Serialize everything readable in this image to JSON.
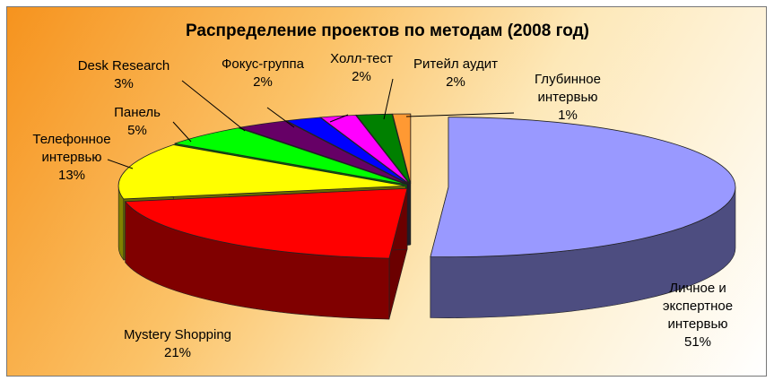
{
  "chart_data": {
    "type": "pie",
    "style": "3d-exploded",
    "title": "Распределение проектов по методам (2008 год)",
    "slices": [
      {
        "label": "Личное и экспертное интервью",
        "label_lines": [
          "Личное и",
          "экспертное",
          "интервью"
        ],
        "value": 51,
        "percent_label": "51%",
        "color": "#9999ff"
      },
      {
        "label": "Mystery Shopping",
        "label_lines": [
          "Mystery Shopping"
        ],
        "value": 21,
        "percent_label": "21%",
        "color": "#ff0000"
      },
      {
        "label": "Телефонное интервью",
        "label_lines": [
          "Телефонное",
          "интервью"
        ],
        "value": 13,
        "percent_label": "13%",
        "color": "#ffff00"
      },
      {
        "label": "Панель",
        "label_lines": [
          "Панель"
        ],
        "value": 5,
        "percent_label": "5%",
        "color": "#00ff00"
      },
      {
        "label": "Desk Research",
        "label_lines": [
          "Desk Research"
        ],
        "value": 3,
        "percent_label": "3%",
        "color": "#660066"
      },
      {
        "label": "Фокус-группа",
        "label_lines": [
          "Фокус-группа"
        ],
        "value": 2,
        "percent_label": "2%",
        "color": "#0000ff"
      },
      {
        "label": "Холл-тест",
        "label_lines": [
          "Холл-тест"
        ],
        "value": 2,
        "percent_label": "2%",
        "color": "#ff00ff"
      },
      {
        "label": "Ритейл аудит",
        "label_lines": [
          "Ритейл аудит"
        ],
        "value": 2,
        "percent_label": "2%",
        "color": "#008000"
      },
      {
        "label": "Глубинное интервью",
        "label_lines": [
          "Глубинное",
          "интервью"
        ],
        "value": 1,
        "percent_label": "1%",
        "color": "#ff9933"
      }
    ],
    "legend": "none"
  }
}
